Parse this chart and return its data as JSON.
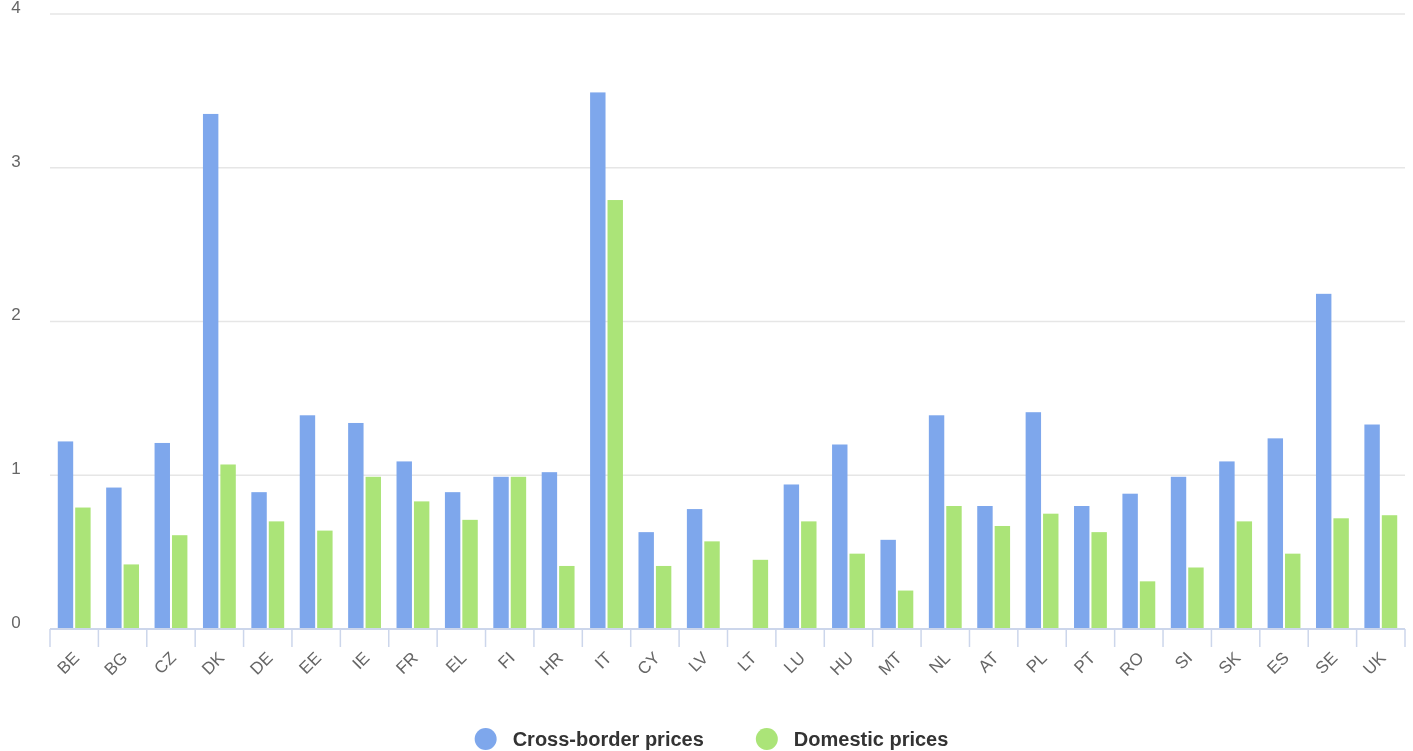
{
  "chart_data": {
    "type": "bar",
    "categories": [
      "BE",
      "BG",
      "CZ",
      "DK",
      "DE",
      "EE",
      "IE",
      "FR",
      "EL",
      "FI",
      "HR",
      "IT",
      "CY",
      "LV",
      "LT",
      "LU",
      "HU",
      "MT",
      "NL",
      "AT",
      "PL",
      "PT",
      "RO",
      "SI",
      "SK",
      "ES",
      "SE",
      "UK"
    ],
    "series": [
      {
        "name": "Cross-border prices",
        "color": "#7ea7ec",
        "values": [
          1.22,
          0.92,
          1.21,
          3.35,
          0.89,
          1.39,
          1.34,
          1.09,
          0.89,
          0.99,
          1.02,
          3.49,
          0.63,
          0.78,
          null,
          0.94,
          1.2,
          0.58,
          1.39,
          0.8,
          1.41,
          0.8,
          0.88,
          0.99,
          1.09,
          1.24,
          2.18,
          1.33
        ]
      },
      {
        "name": "Domestic prices",
        "color": "#abe478",
        "values": [
          0.79,
          0.42,
          0.61,
          1.07,
          0.7,
          0.64,
          0.99,
          0.83,
          0.71,
          0.99,
          0.41,
          2.79,
          0.41,
          0.57,
          0.45,
          0.7,
          0.49,
          0.25,
          0.8,
          0.67,
          0.75,
          0.63,
          0.31,
          0.4,
          0.7,
          0.49,
          0.72,
          0.74
        ]
      }
    ],
    "ylim": [
      0,
      4
    ],
    "yticks": [
      0,
      1,
      2,
      3,
      4
    ],
    "grid": "y",
    "legend": "bottom"
  }
}
